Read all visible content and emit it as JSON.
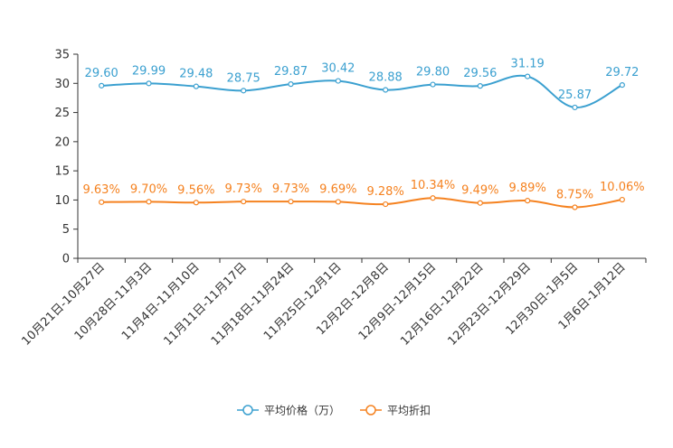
{
  "chart_data": {
    "type": "line",
    "title": "",
    "xlabel": "",
    "ylabel": "",
    "ylim": [
      0,
      35
    ],
    "yticks": [
      0,
      5,
      10,
      15,
      20,
      25,
      30,
      35
    ],
    "grid": false,
    "legend_position": "bottom-center",
    "categories": [
      "10月21日-10月27日",
      "10月28日-11月3日",
      "11月4日-11月10日",
      "11月11日-11月17日",
      "11月18日-11月24日",
      "11月25日-12月1日",
      "12月2日-12月8日",
      "12月9日-12月15日",
      "12月16日-12月22日",
      "12月23日-12月29日",
      "12月30日-1月5日",
      "1月6日-1月12日"
    ],
    "series": [
      {
        "name": "平均价格（万）",
        "color": "#3ba0d0",
        "values": [
          29.6,
          29.99,
          29.48,
          28.75,
          29.87,
          30.42,
          28.88,
          29.8,
          29.56,
          31.19,
          25.87,
          29.72
        ],
        "labels": [
          "29.60",
          "29.99",
          "29.48",
          "28.75",
          "29.87",
          "30.42",
          "28.88",
          "29.80",
          "29.56",
          "31.19",
          "25.87",
          "29.72"
        ]
      },
      {
        "name": "平均折扣",
        "color": "#f58220",
        "values": [
          9.63,
          9.7,
          9.56,
          9.73,
          9.73,
          9.69,
          9.28,
          10.34,
          9.49,
          9.89,
          8.75,
          10.06
        ],
        "labels": [
          "9.63%",
          "9.70%",
          "9.56%",
          "9.73%",
          "9.73%",
          "9.69%",
          "9.28%",
          "10.34%",
          "9.49%",
          "9.89%",
          "8.75%",
          "10.06%"
        ]
      }
    ]
  }
}
